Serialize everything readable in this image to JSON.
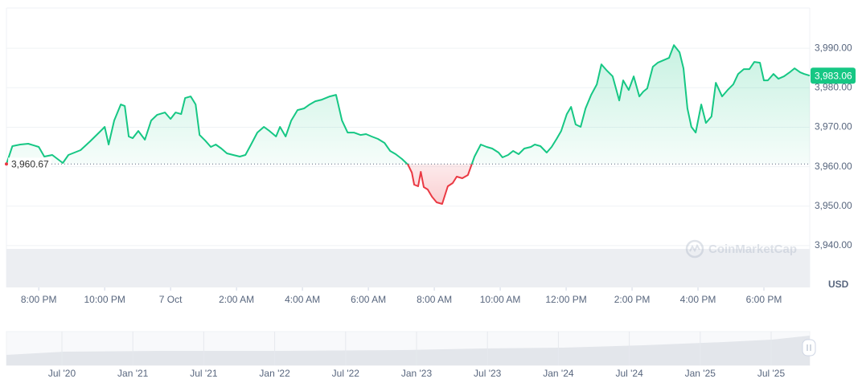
{
  "chart_data": {
    "type": "line",
    "color_up": "#16c784",
    "color_down": "#ea3943",
    "baseline": {
      "value": 3960.67,
      "label": "3,960.67"
    },
    "last_price": {
      "value": 3983.06,
      "label": "3,983.06"
    },
    "y_unit": "USD",
    "watermark": "CoinMarketCap",
    "xlim": [
      -4.98,
      19.39
    ],
    "ylim": [
      3929.4,
      4000.2
    ],
    "xticks": [
      {
        "value": -4,
        "label": "8:00 PM"
      },
      {
        "value": -2,
        "label": "10:00 PM"
      },
      {
        "value": 0,
        "label": "7 Oct"
      },
      {
        "value": 2,
        "label": "2:00 AM"
      },
      {
        "value": 4,
        "label": "4:00 AM"
      },
      {
        "value": 6,
        "label": "6:00 AM"
      },
      {
        "value": 8,
        "label": "8:00 AM"
      },
      {
        "value": 10,
        "label": "10:00 AM"
      },
      {
        "value": 12,
        "label": "12:00 PM"
      },
      {
        "value": 14,
        "label": "2:00 PM"
      },
      {
        "value": 16,
        "label": "4:00 PM"
      },
      {
        "value": 18,
        "label": "6:00 PM"
      }
    ],
    "yticks": [
      {
        "value": 3940,
        "label": "3,940.00"
      },
      {
        "value": 3950,
        "label": "3,950.00"
      },
      {
        "value": 3960,
        "label": "3,960.00"
      },
      {
        "value": 3970,
        "label": "3,970.00"
      },
      {
        "value": 3980,
        "label": "3,980.00"
      },
      {
        "value": 3990,
        "label": "3,990.00"
      }
    ],
    "grid": true,
    "x": [
      -4.98,
      -4.8,
      -4.56,
      -4.32,
      -4.15,
      -4.0,
      -3.83,
      -3.59,
      -3.27,
      -3.1,
      -2.73,
      -2.44,
      -2.12,
      -2.0,
      -1.88,
      -1.71,
      -1.51,
      -1.39,
      -1.27,
      -1.15,
      -0.98,
      -0.78,
      -0.59,
      -0.41,
      -0.17,
      0.0,
      0.15,
      0.32,
      0.44,
      0.61,
      0.76,
      0.88,
      1.05,
      1.22,
      1.37,
      1.54,
      1.71,
      1.9,
      2.1,
      2.27,
      2.44,
      2.63,
      2.83,
      3.0,
      3.2,
      3.32,
      3.49,
      3.66,
      3.85,
      4.05,
      4.22,
      4.39,
      4.59,
      4.83,
      5.02,
      5.2,
      5.37,
      5.56,
      5.76,
      5.93,
      6.1,
      6.29,
      6.49,
      6.66,
      6.83,
      7.02,
      7.2,
      7.32,
      7.39,
      7.51,
      7.59,
      7.68,
      7.8,
      7.93,
      8.07,
      8.24,
      8.41,
      8.56,
      8.68,
      8.85,
      9.02,
      9.22,
      9.41,
      9.59,
      9.76,
      9.95,
      10.07,
      10.24,
      10.39,
      10.56,
      10.73,
      10.93,
      11.05,
      11.22,
      11.41,
      11.56,
      11.71,
      11.85,
      12.02,
      12.15,
      12.29,
      12.44,
      12.59,
      12.76,
      12.93,
      13.07,
      13.24,
      13.41,
      13.61,
      13.73,
      13.9,
      14.05,
      14.22,
      14.34,
      14.46,
      14.63,
      14.78,
      14.95,
      15.12,
      15.27,
      15.44,
      15.56,
      15.68,
      15.8,
      15.93,
      16.1,
      16.24,
      16.41,
      16.54,
      16.73,
      16.9,
      17.07,
      17.22,
      17.39,
      17.56,
      17.71,
      17.88,
      18.0,
      18.12,
      18.29,
      18.44,
      18.61,
      18.78,
      18.93,
      19.1,
      19.22,
      19.39
    ],
    "values": [
      3960.67,
      3965.2,
      3965.61,
      3965.81,
      3965.4,
      3965.0,
      3962.56,
      3962.96,
      3960.93,
      3962.96,
      3964.18,
      3966.42,
      3969.06,
      3970.08,
      3965.61,
      3971.7,
      3975.77,
      3975.36,
      3967.64,
      3967.23,
      3969.06,
      3966.83,
      3971.7,
      3973.13,
      3973.74,
      3972.11,
      3973.74,
      3973.33,
      3977.4,
      3977.8,
      3975.77,
      3968.04,
      3966.62,
      3965.0,
      3965.61,
      3964.59,
      3963.37,
      3962.96,
      3962.56,
      3962.96,
      3965.61,
      3968.65,
      3970.08,
      3969.06,
      3967.64,
      3970.08,
      3967.64,
      3971.7,
      3974.35,
      3974.76,
      3975.77,
      3976.58,
      3976.99,
      3977.8,
      3978.21,
      3971.7,
      3968.65,
      3968.65,
      3968.04,
      3968.25,
      3967.64,
      3967.03,
      3966.02,
      3963.98,
      3963.17,
      3961.95,
      3960.53,
      3958.49,
      3955.44,
      3955.03,
      3958.69,
      3954.83,
      3954.22,
      3952.39,
      3950.97,
      3950.56,
      3955.03,
      3955.85,
      3957.47,
      3957.06,
      3957.88,
      3962.56,
      3965.61,
      3965.0,
      3964.59,
      3963.57,
      3962.35,
      3962.96,
      3963.98,
      3963.17,
      3964.59,
      3965.0,
      3965.61,
      3965.2,
      3963.57,
      3965.0,
      3967.03,
      3969.06,
      3973.33,
      3975.16,
      3970.69,
      3970.08,
      3974.76,
      3978.21,
      3980.85,
      3985.93,
      3984.31,
      3982.88,
      3976.79,
      3981.87,
      3979.43,
      3982.88,
      3977.8,
      3979.02,
      3979.83,
      3985.32,
      3986.34,
      3986.95,
      3987.56,
      3990.81,
      3988.98,
      3984.92,
      3974.76,
      3970.08,
      3968.65,
      3975.77,
      3971.09,
      3972.72,
      3981.26,
      3977.8,
      3979.43,
      3980.85,
      3983.49,
      3984.71,
      3984.71,
      3986.54,
      3986.34,
      3981.87,
      3981.87,
      3983.49,
      3982.27,
      3982.88,
      3983.9,
      3984.92,
      3983.9,
      3983.49,
      3983.06
    ],
    "navigator": {
      "xticks": [
        "Jul '20",
        "Jan '21",
        "Jul '21",
        "Jan '22",
        "Jul '22",
        "Jan '23",
        "Jul '23",
        "Jan '24",
        "Jul '24",
        "Jan '25",
        "Jul '25"
      ]
    }
  }
}
